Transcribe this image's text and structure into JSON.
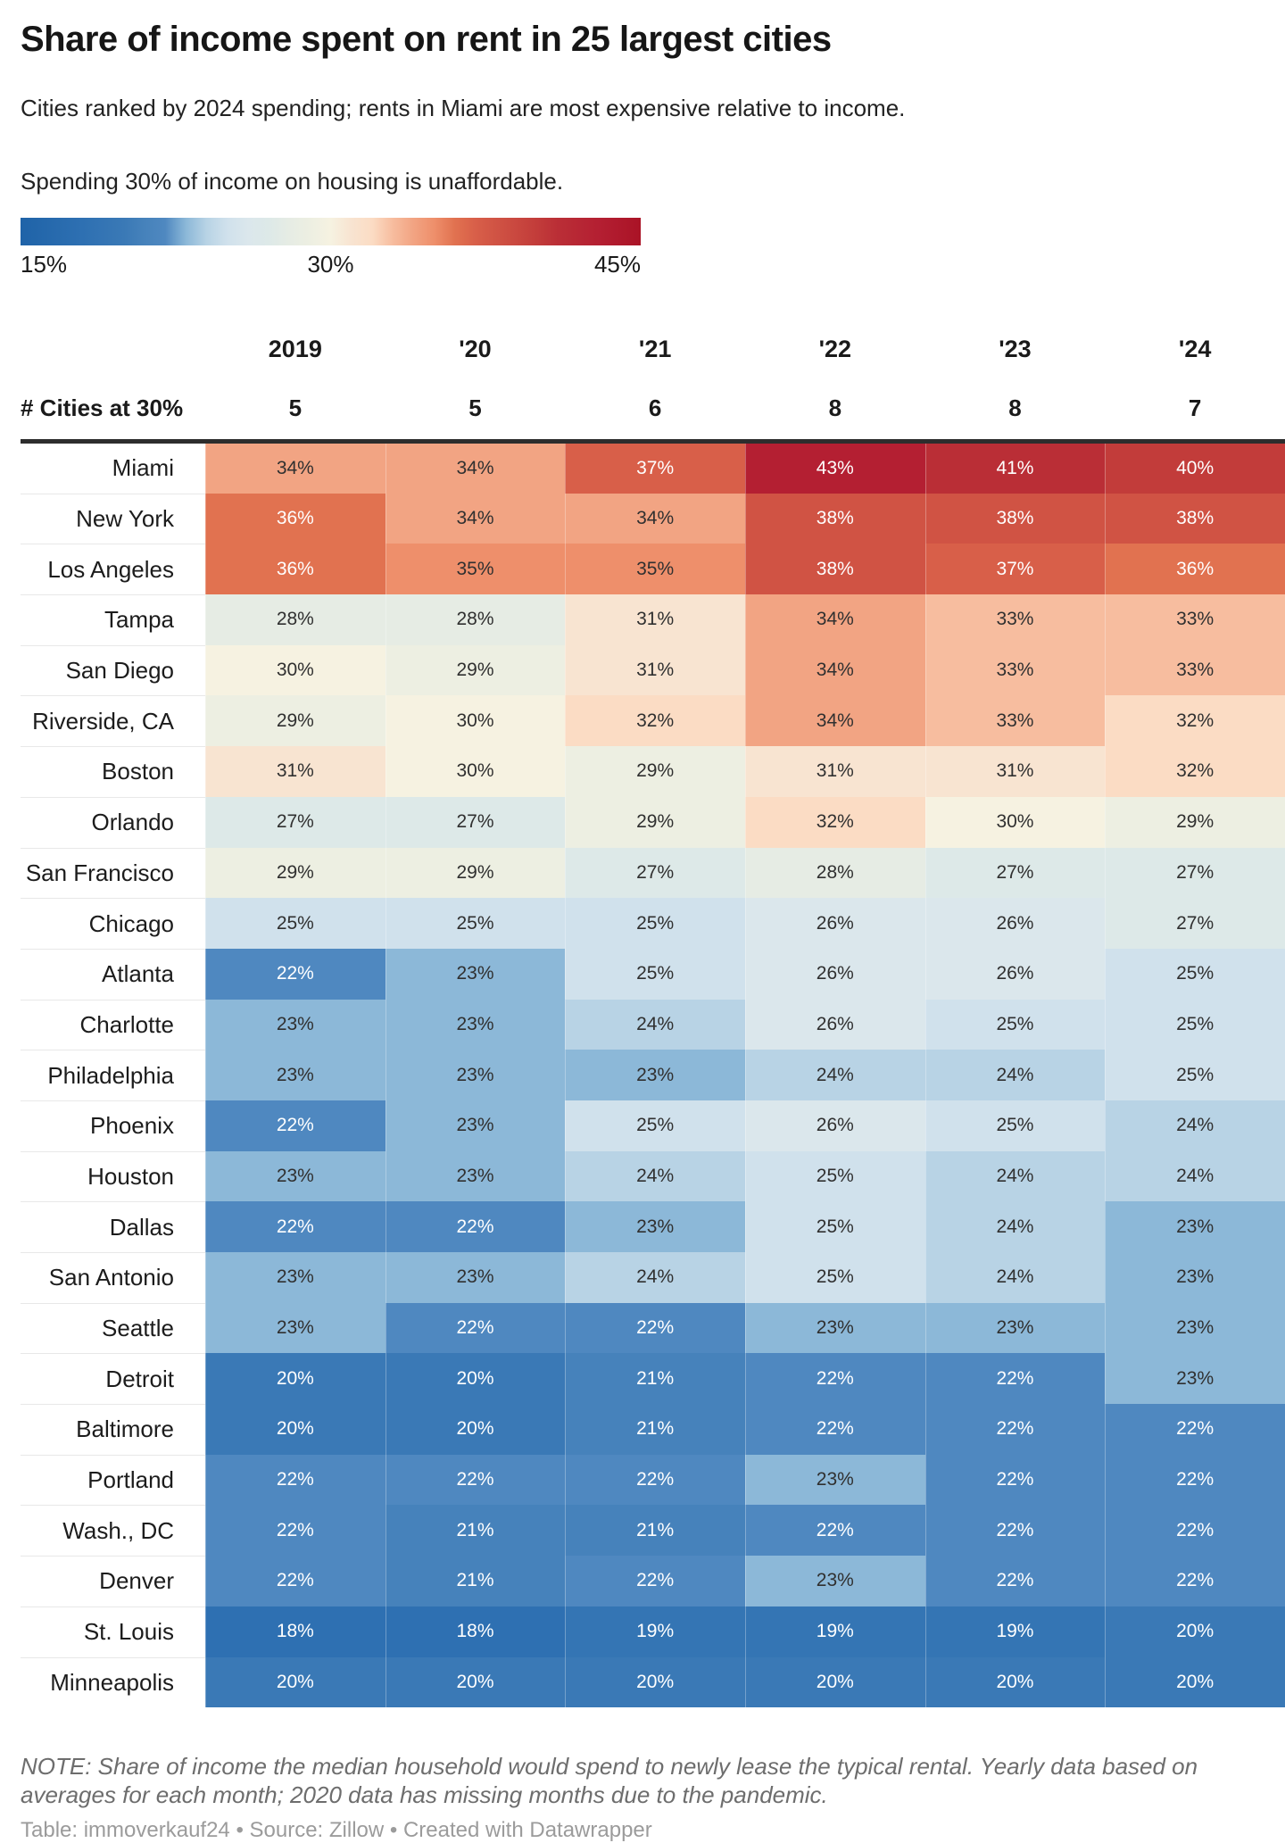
{
  "header": {
    "title": "Share of income spent on rent in 25 largest cities",
    "subtitle": "Cities ranked by 2024 spending; rents in Miami are most expensive relative to income.",
    "description": "Spending 30% of income on housing is unaffordable."
  },
  "chart_data": {
    "type": "heatmap",
    "title": "Share of income spent on rent in 25 largest cities",
    "subtitle": "Cities ranked by 2024 spending; rents in Miami are most expensive relative to income.",
    "unit": "%",
    "columns": [
      "2019",
      "'20",
      "'21",
      "'22",
      "'23",
      "'24"
    ],
    "summary_row": {
      "label": "# Cities at 30%",
      "values": [
        5,
        5,
        6,
        8,
        8,
        7
      ]
    },
    "rows": [
      {
        "city": "Miami",
        "values": [
          34,
          34,
          37,
          43,
          41,
          40
        ]
      },
      {
        "city": "New York",
        "values": [
          36,
          34,
          34,
          38,
          38,
          38
        ]
      },
      {
        "city": "Los Angeles",
        "values": [
          36,
          35,
          35,
          38,
          37,
          36
        ]
      },
      {
        "city": "Tampa",
        "values": [
          28,
          28,
          31,
          34,
          33,
          33
        ]
      },
      {
        "city": "San Diego",
        "values": [
          30,
          29,
          31,
          34,
          33,
          33
        ]
      },
      {
        "city": "Riverside, CA",
        "values": [
          29,
          30,
          32,
          34,
          33,
          32
        ]
      },
      {
        "city": "Boston",
        "values": [
          31,
          30,
          29,
          31,
          31,
          32
        ]
      },
      {
        "city": "Orlando",
        "values": [
          27,
          27,
          29,
          32,
          30,
          29
        ]
      },
      {
        "city": "San Francisco",
        "values": [
          29,
          29,
          27,
          28,
          27,
          27
        ]
      },
      {
        "city": "Chicago",
        "values": [
          25,
          25,
          25,
          26,
          26,
          27
        ]
      },
      {
        "city": "Atlanta",
        "values": [
          22,
          23,
          25,
          26,
          26,
          25
        ]
      },
      {
        "city": "Charlotte",
        "values": [
          23,
          23,
          24,
          26,
          25,
          25
        ]
      },
      {
        "city": "Philadelphia",
        "values": [
          23,
          23,
          23,
          24,
          24,
          25
        ]
      },
      {
        "city": "Phoenix",
        "values": [
          22,
          23,
          25,
          26,
          25,
          24
        ]
      },
      {
        "city": "Houston",
        "values": [
          23,
          23,
          24,
          25,
          24,
          24
        ]
      },
      {
        "city": "Dallas",
        "values": [
          22,
          22,
          23,
          25,
          24,
          23
        ]
      },
      {
        "city": "San Antonio",
        "values": [
          23,
          23,
          24,
          25,
          24,
          23
        ]
      },
      {
        "city": "Seattle",
        "values": [
          23,
          22,
          22,
          23,
          23,
          23
        ]
      },
      {
        "city": "Detroit",
        "values": [
          20,
          20,
          21,
          22,
          22,
          23
        ]
      },
      {
        "city": "Baltimore",
        "values": [
          20,
          20,
          21,
          22,
          22,
          22
        ]
      },
      {
        "city": "Portland",
        "values": [
          22,
          22,
          22,
          23,
          22,
          22
        ]
      },
      {
        "city": "Wash., DC",
        "values": [
          22,
          21,
          21,
          22,
          22,
          22
        ]
      },
      {
        "city": "Denver",
        "values": [
          22,
          21,
          22,
          23,
          22,
          22
        ]
      },
      {
        "city": "St. Louis",
        "values": [
          18,
          18,
          19,
          19,
          19,
          20
        ]
      },
      {
        "city": "Minneapolis",
        "values": [
          20,
          20,
          20,
          20,
          20,
          20
        ]
      }
    ],
    "legend": {
      "min_label": "15%",
      "mid_label": "30%",
      "max_label": "45%",
      "scale_min": 15,
      "scale_max": 45,
      "color_stops": [
        {
          "value": 15,
          "color": "#1f63a8"
        },
        {
          "value": 18,
          "color": "#2e70b2"
        },
        {
          "value": 20,
          "color": "#3a79b6"
        },
        {
          "value": 21,
          "color": "#4682bb"
        },
        {
          "value": 22,
          "color": "#4f88c0"
        },
        {
          "value": 23,
          "color": "#8cb8d8"
        },
        {
          "value": 24,
          "color": "#b8d3e5"
        },
        {
          "value": 25,
          "color": "#d0e1ec"
        },
        {
          "value": 26,
          "color": "#dbe7ec"
        },
        {
          "value": 27,
          "color": "#dde9e8"
        },
        {
          "value": 28,
          "color": "#e6ece4"
        },
        {
          "value": 29,
          "color": "#edefe2"
        },
        {
          "value": 30,
          "color": "#f6f2e1"
        },
        {
          "value": 31,
          "color": "#f8e4d1"
        },
        {
          "value": 32,
          "color": "#fbdcc4"
        },
        {
          "value": 33,
          "color": "#f7bd9f"
        },
        {
          "value": 34,
          "color": "#f2a483"
        },
        {
          "value": 35,
          "color": "#ee8f6b"
        },
        {
          "value": 36,
          "color": "#e17250"
        },
        {
          "value": 37,
          "color": "#d85f49"
        },
        {
          "value": 38,
          "color": "#d05344"
        },
        {
          "value": 40,
          "color": "#c23c3a"
        },
        {
          "value": 41,
          "color": "#ba2e36"
        },
        {
          "value": 43,
          "color": "#b41f32"
        },
        {
          "value": 45,
          "color": "#aa1326"
        }
      ],
      "white_text_low_max": 22,
      "white_text_high_min": 36,
      "text_dark": "#303030",
      "text_light": "#ffffff"
    }
  },
  "footer": {
    "note": "NOTE: Share of income the median household would spend to newly lease the typical rental. Yearly data based on averages for each month; 2020 data has missing months due to the pandemic.",
    "attribution": "Table: immoverkauf24 • Source: Zillow • Created with Datawrapper"
  }
}
